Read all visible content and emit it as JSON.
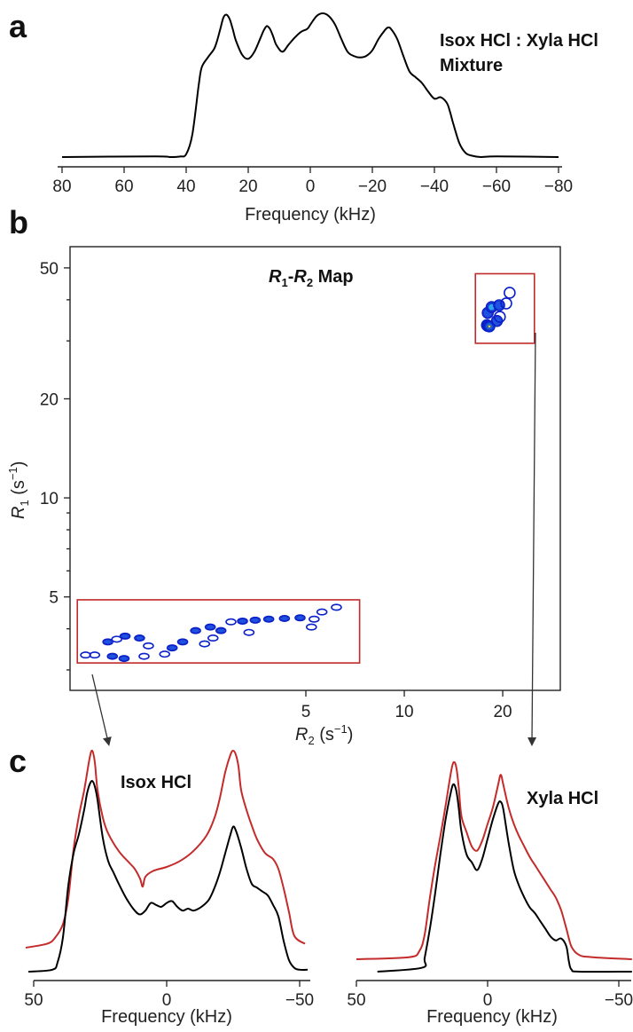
{
  "panel_labels": [
    "a",
    "b",
    "c"
  ],
  "colors": {
    "black_spectrum": "#000000",
    "red_spectrum": "#c42b2b",
    "box": "#c02a2a",
    "contour_low": "#0a20c8",
    "contour_high": "#e6d12a"
  },
  "chart_data": [
    {
      "panel": "a",
      "type": "line",
      "annotation": [
        "Isox HCl : Xyla HCl",
        "Mixture"
      ],
      "xlabel": "Frequency (kHz)",
      "ylabel": "",
      "xlim": [
        80,
        -80
      ],
      "x_reversed": true,
      "xticks": [
        80,
        60,
        40,
        20,
        0,
        -20,
        -40,
        -60,
        -80
      ],
      "xtick_labels": [
        "80",
        "60",
        "40",
        "20",
        "0",
        "−20",
        "−40",
        "−60",
        "−80"
      ],
      "series": [
        {
          "color": "#000000",
          "x": [
            80,
            50,
            45,
            42,
            40,
            38,
            36,
            35,
            33,
            31,
            30,
            29,
            28,
            27,
            26,
            25,
            24,
            22,
            20,
            18,
            16,
            15,
            14,
            13,
            12,
            11,
            9,
            7,
            5,
            3,
            1,
            0,
            -2,
            -4,
            -6,
            -8,
            -10,
            -12,
            -14,
            -16,
            -18,
            -20,
            -22,
            -24,
            -25,
            -26,
            -28,
            -30,
            -32,
            -34,
            -36,
            -38,
            -40,
            -42,
            -44,
            -45,
            -46,
            -48,
            -50,
            -52,
            -55,
            -60,
            -80
          ],
          "y": [
            0,
            0.005,
            0,
            0.004,
            0.02,
            0.16,
            0.5,
            0.63,
            0.7,
            0.76,
            0.82,
            0.9,
            0.98,
            1.0,
            0.97,
            0.9,
            0.82,
            0.72,
            0.69,
            0.74,
            0.84,
            0.89,
            0.92,
            0.9,
            0.85,
            0.79,
            0.74,
            0.79,
            0.84,
            0.88,
            0.9,
            0.93,
            0.99,
            1.01,
            0.99,
            0.93,
            0.83,
            0.74,
            0.71,
            0.7,
            0.71,
            0.75,
            0.83,
            0.89,
            0.91,
            0.9,
            0.83,
            0.71,
            0.6,
            0.56,
            0.52,
            0.46,
            0.41,
            0.42,
            0.38,
            0.32,
            0.24,
            0.1,
            0.03,
            0.01,
            0,
            0.005,
            0
          ]
        }
      ]
    },
    {
      "panel": "b",
      "type": "contour",
      "annotation_parts": [
        "R",
        "1",
        "-",
        "R",
        "2",
        " Map"
      ],
      "xlabel_parts": [
        "R",
        "2",
        " (s",
        "−1",
        ")"
      ],
      "ylabel_parts": [
        "R",
        "1",
        " (s",
        "−1",
        ")"
      ],
      "x_scale": "log",
      "y_scale": "log",
      "xlim": [
        0.95,
        30
      ],
      "ylim": [
        2.6,
        58
      ],
      "xticks": [
        5,
        10,
        20
      ],
      "xtick_labels": [
        "5",
        "10",
        "20"
      ],
      "yticks": [
        5,
        10,
        20,
        50
      ],
      "ytick_labels": [
        "5",
        "10",
        "20",
        "50"
      ],
      "y_minor_ticks": [
        3,
        4,
        6,
        7,
        8,
        9,
        30,
        40
      ],
      "boxes": [
        {
          "name": "Isox HCl",
          "x_range": [
            1.0,
            7.3
          ],
          "y_range": [
            3.15,
            4.9
          ]
        },
        {
          "name": "Xyla HCl",
          "x_range": [
            16.5,
            25
          ],
          "y_range": [
            29.5,
            48
          ]
        }
      ],
      "peaks": [
        {
          "x": 1.06,
          "y": 3.33,
          "level": 1
        },
        {
          "x": 1.13,
          "y": 3.33,
          "level": 1
        },
        {
          "x": 1.24,
          "y": 3.65,
          "level": 2
        },
        {
          "x": 1.32,
          "y": 3.72,
          "level": 1
        },
        {
          "x": 1.4,
          "y": 3.8,
          "level": 2
        },
        {
          "x": 1.55,
          "y": 3.75,
          "level": 2
        },
        {
          "x": 1.65,
          "y": 3.55,
          "level": 1
        },
        {
          "x": 1.28,
          "y": 3.3,
          "level": 2
        },
        {
          "x": 1.39,
          "y": 3.25,
          "level": 2
        },
        {
          "x": 1.6,
          "y": 3.3,
          "level": 1
        },
        {
          "x": 1.85,
          "y": 3.35,
          "level": 1
        },
        {
          "x": 1.95,
          "y": 3.5,
          "level": 2
        },
        {
          "x": 2.1,
          "y": 3.65,
          "level": 2
        },
        {
          "x": 2.45,
          "y": 3.6,
          "level": 1
        },
        {
          "x": 2.6,
          "y": 3.75,
          "level": 1
        },
        {
          "x": 2.3,
          "y": 3.95,
          "level": 2
        },
        {
          "x": 2.55,
          "y": 4.05,
          "level": 2
        },
        {
          "x": 2.75,
          "y": 3.95,
          "level": 2
        },
        {
          "x": 2.95,
          "y": 4.2,
          "level": 1
        },
        {
          "x": 3.2,
          "y": 4.22,
          "level": 2
        },
        {
          "x": 3.5,
          "y": 4.25,
          "level": 2
        },
        {
          "x": 3.85,
          "y": 4.28,
          "level": 2
        },
        {
          "x": 4.3,
          "y": 4.3,
          "level": 2
        },
        {
          "x": 4.8,
          "y": 4.32,
          "level": 2
        },
        {
          "x": 5.3,
          "y": 4.28,
          "level": 1
        },
        {
          "x": 5.6,
          "y": 4.5,
          "level": 1
        },
        {
          "x": 6.2,
          "y": 4.65,
          "level": 1
        },
        {
          "x": 5.2,
          "y": 4.05,
          "level": 1
        },
        {
          "x": 3.35,
          "y": 3.9,
          "level": 1
        },
        {
          "x": 18.0,
          "y": 36.5,
          "level": 2
        },
        {
          "x": 18.5,
          "y": 38.0,
          "level": 3
        },
        {
          "x": 19.5,
          "y": 38.5,
          "level": 2
        },
        {
          "x": 20.5,
          "y": 39.0,
          "level": 1
        },
        {
          "x": 21.0,
          "y": 42.0,
          "level": 1
        },
        {
          "x": 17.9,
          "y": 33.5,
          "level": 2
        },
        {
          "x": 18.0,
          "y": 33.3,
          "level": 4
        },
        {
          "x": 18.2,
          "y": 33.2,
          "level": 5
        },
        {
          "x": 19.2,
          "y": 34.5,
          "level": 2
        },
        {
          "x": 19.6,
          "y": 35.5,
          "level": 1
        }
      ]
    },
    {
      "panel": "c",
      "type": "line",
      "annotation": "Isox HCl",
      "xlabel": "Frequency (kHz)",
      "xlim": [
        50,
        -55
      ],
      "x_reversed": true,
      "xticks": [
        50,
        0,
        -50
      ],
      "xtick_labels": [
        "50",
        "0",
        "−50"
      ],
      "series": [
        {
          "name": "red",
          "color": "#c42b2b",
          "x": [
            53,
            45,
            42,
            39,
            37,
            35,
            33,
            31,
            29,
            28,
            27,
            26,
            24,
            22,
            18,
            14,
            12,
            10,
            9,
            8,
            5,
            0,
            -5,
            -10,
            -15,
            -18,
            -20,
            -22,
            -24,
            -25,
            -26,
            -27,
            -28,
            -30,
            -32,
            -34,
            -37,
            -40,
            -42,
            -44,
            -46,
            -48,
            -52
          ],
          "y": [
            0,
            0.02,
            0.05,
            0.12,
            0.25,
            0.5,
            0.67,
            0.8,
            0.96,
            1.0,
            0.94,
            0.8,
            0.66,
            0.58,
            0.49,
            0.43,
            0.4,
            0.35,
            0.31,
            0.36,
            0.39,
            0.41,
            0.44,
            0.49,
            0.57,
            0.66,
            0.76,
            0.89,
            0.98,
            1.0,
            0.98,
            0.92,
            0.8,
            0.7,
            0.62,
            0.55,
            0.48,
            0.45,
            0.4,
            0.3,
            0.18,
            0.06,
            0.02
          ]
        },
        {
          "name": "black",
          "color": "#000000",
          "x": [
            52,
            43,
            41,
            39,
            37,
            35,
            33,
            31,
            30,
            29,
            28,
            27,
            26,
            24,
            22,
            20,
            18,
            15,
            12,
            10,
            8,
            6,
            4,
            2,
            0,
            -2,
            -4,
            -6,
            -8,
            -10,
            -12,
            -14,
            -16,
            -18,
            -20,
            -22,
            -24,
            -25,
            -26,
            -28,
            -30,
            -32,
            -34,
            -36,
            -38,
            -40,
            -42,
            -44,
            -46,
            -48,
            -50,
            -53
          ],
          "y": [
            0,
            0.01,
            0.05,
            0.18,
            0.45,
            0.62,
            0.72,
            0.85,
            0.93,
            0.98,
            1.0,
            0.97,
            0.9,
            0.7,
            0.58,
            0.52,
            0.46,
            0.38,
            0.32,
            0.3,
            0.32,
            0.36,
            0.35,
            0.34,
            0.36,
            0.37,
            0.34,
            0.32,
            0.33,
            0.32,
            0.33,
            0.35,
            0.38,
            0.44,
            0.52,
            0.62,
            0.72,
            0.76,
            0.74,
            0.65,
            0.54,
            0.46,
            0.44,
            0.42,
            0.4,
            0.35,
            0.29,
            0.16,
            0.06,
            0.02,
            0.01,
            0.01
          ]
        }
      ]
    },
    {
      "panel": "c",
      "type": "line",
      "annotation": "Xyla HCl",
      "xlabel": "Frequency (kHz)",
      "xlim": [
        50,
        -55
      ],
      "x_reversed": true,
      "xticks": [
        50,
        0,
        -50
      ],
      "xtick_labels": [
        "50",
        "0",
        "−50"
      ],
      "series": [
        {
          "name": "red",
          "color": "#c42b2b",
          "x": [
            50,
            30,
            26,
            24,
            22,
            20,
            18,
            16,
            14,
            13,
            12,
            11,
            10,
            8,
            6,
            4,
            2,
            0,
            -2,
            -4,
            -5,
            -6,
            -8,
            -10,
            -12,
            -14,
            -16,
            -18,
            -20,
            -22,
            -24,
            -26,
            -28,
            -30,
            -32,
            -35,
            -40,
            -55
          ],
          "y": [
            0,
            0.01,
            0.04,
            0.12,
            0.3,
            0.46,
            0.6,
            0.75,
            0.91,
            0.96,
            0.94,
            0.84,
            0.7,
            0.62,
            0.55,
            0.53,
            0.58,
            0.66,
            0.74,
            0.85,
            0.9,
            0.85,
            0.74,
            0.66,
            0.6,
            0.55,
            0.5,
            0.46,
            0.42,
            0.38,
            0.34,
            0.3,
            0.24,
            0.15,
            0.06,
            0.02,
            0.01,
            0
          ]
        },
        {
          "name": "black",
          "color": "#000000",
          "x": [
            42,
            25,
            24,
            22,
            20,
            18,
            16,
            14,
            13,
            12,
            11,
            10,
            8,
            6,
            4,
            2,
            0,
            -2,
            -4,
            -5,
            -6,
            -8,
            -10,
            -12,
            -14,
            -16,
            -18,
            -20,
            -22,
            -24,
            -26,
            -28,
            -30,
            -31,
            -32,
            -35,
            -55
          ],
          "y": [
            0,
            0.02,
            0.07,
            0.22,
            0.4,
            0.6,
            0.78,
            0.92,
            0.96,
            0.93,
            0.84,
            0.72,
            0.6,
            0.56,
            0.52,
            0.58,
            0.68,
            0.78,
            0.86,
            0.87,
            0.83,
            0.66,
            0.52,
            0.44,
            0.38,
            0.33,
            0.3,
            0.26,
            0.22,
            0.18,
            0.16,
            0.17,
            0.13,
            0.05,
            0.01,
            0,
            0
          ]
        }
      ]
    }
  ]
}
